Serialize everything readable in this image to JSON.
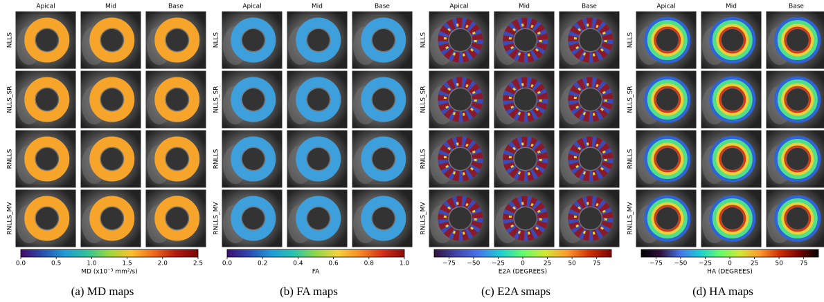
{
  "panels": [
    {
      "columns": [
        "Apical",
        "Mid",
        "Base"
      ],
      "rows": [
        "NLLS",
        "NLLS_SR",
        "RNLLS",
        "RNLLS_MV"
      ],
      "colorbar": {
        "lim": [
          0,
          2.5
        ],
        "ticks": [
          {
            "value": 0,
            "label": "0.0"
          },
          {
            "value": 0.5,
            "label": "0.5"
          },
          {
            "value": 1,
            "label": "1.0"
          },
          {
            "value": 1.5,
            "label": "1.5"
          },
          {
            "value": 2,
            "label": "2.0"
          },
          {
            "value": 2.5,
            "label": "2.5"
          }
        ],
        "label": "MD (x10⁻³ mm²/s)"
      },
      "caption": "(a) MD maps"
    },
    {
      "columns": [
        "Apical",
        "Mid",
        "Base"
      ],
      "rows": [
        "NLLS",
        "NLLS_SR",
        "RNLLS",
        "RNLLS_MV"
      ],
      "colorbar": {
        "lim": [
          0,
          1
        ],
        "ticks": [
          {
            "value": 0,
            "label": "0.0"
          },
          {
            "value": 0.2,
            "label": "0.2"
          },
          {
            "value": 0.4,
            "label": "0.4"
          },
          {
            "value": 0.6,
            "label": "0.6"
          },
          {
            "value": 0.8,
            "label": "0.8"
          },
          {
            "value": 1,
            "label": "1.0"
          }
        ],
        "label": "FA"
      },
      "caption": "(b) FA maps"
    },
    {
      "columns": [
        "Apical",
        "Mid",
        "Base"
      ],
      "rows": [
        "NLLS",
        "NLLS_SR",
        "RNLLS",
        "RNLLS_MV"
      ],
      "colorbar": {
        "lim": [
          -90,
          90
        ],
        "ticks": [
          {
            "value": -75,
            "label": "−75"
          },
          {
            "value": -50,
            "label": "−50"
          },
          {
            "value": -25,
            "label": "−25"
          },
          0,
          25,
          50,
          75
        ],
        "label": "E2A (DEGREES)"
      },
      "caption": "(c) E2A smaps"
    },
    {
      "columns": [
        "Apical",
        "Mid",
        "Base"
      ],
      "rows": [
        "NLLS",
        "NLLS_SR",
        "RNLLS",
        "RNLLS_MV"
      ],
      "colorbar": {
        "lim": [
          -90,
          90
        ],
        "ticks": [
          {
            "value": -75,
            "label": "−75"
          },
          {
            "value": -50,
            "label": "−50"
          },
          {
            "value": -25,
            "label": "−25"
          },
          0,
          25,
          50,
          75
        ],
        "label": "HA (DEGREES)"
      },
      "caption": "(d) HA maps"
    }
  ]
}
